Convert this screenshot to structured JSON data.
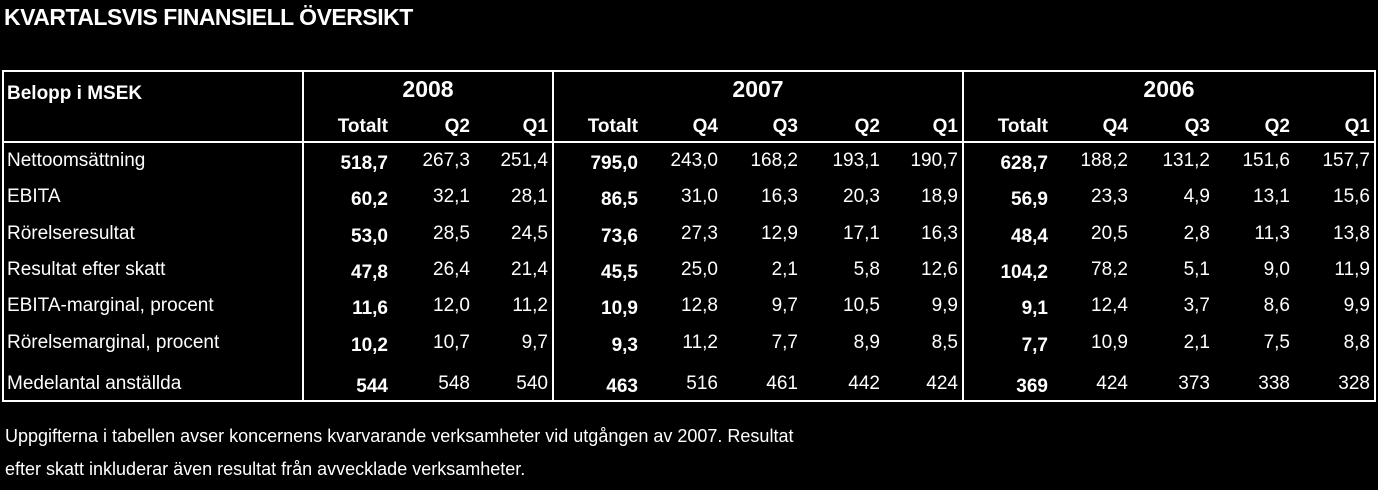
{
  "header": {
    "title": "KVARTALSVIS FINANSIELL ÖVERSIKT"
  },
  "table": {
    "corner": "Belopp i MSEK",
    "groups": [
      {
        "label": "2008",
        "columns": [
          "Totalt",
          "Q2",
          "Q1"
        ]
      },
      {
        "label": "2007",
        "columns": [
          "Totalt",
          "Q4",
          "Q3",
          "Q2",
          "Q1"
        ]
      },
      {
        "label": "2006",
        "columns": [
          "Totalt",
          "Q4",
          "Q3",
          "Q2",
          "Q1"
        ]
      }
    ],
    "rows": [
      {
        "label": "Nettoomsättning",
        "values": [
          "518,7",
          "267,3",
          "251,4",
          "795,0",
          "243,0",
          "168,2",
          "193,1",
          "190,7",
          "628,7",
          "188,2",
          "131,2",
          "151,6",
          "157,7"
        ]
      },
      {
        "label": "EBITA",
        "values": [
          "60,2",
          "32,1",
          "28,1",
          "86,5",
          "31,0",
          "16,3",
          "20,3",
          "18,9",
          "56,9",
          "23,3",
          "4,9",
          "13,1",
          "15,6"
        ]
      },
      {
        "label": "Rörelseresultat",
        "values": [
          "53,0",
          "28,5",
          "24,5",
          "73,6",
          "27,3",
          "12,9",
          "17,1",
          "16,3",
          "48,4",
          "20,5",
          "2,8",
          "11,3",
          "13,8"
        ]
      },
      {
        "label": "Resultat efter skatt",
        "values": [
          "47,8",
          "26,4",
          "21,4",
          "45,5",
          "25,0",
          "2,1",
          "5,8",
          "12,6",
          "104,2",
          "78,2",
          "5,1",
          "9,0",
          "11,9"
        ]
      },
      {
        "label": "EBITA-marginal, procent",
        "values": [
          "11,6",
          "12,0",
          "11,2",
          "10,9",
          "12,8",
          "9,7",
          "10,5",
          "9,9",
          "9,1",
          "12,4",
          "3,7",
          "8,6",
          "9,9"
        ]
      },
      {
        "label": "Rörelsemarginal, procent",
        "values": [
          "10,2",
          "10,7",
          "9,7",
          "9,3",
          "11,2",
          "7,7",
          "8,9",
          "8,5",
          "7,7",
          "10,9",
          "2,1",
          "7,5",
          "8,8"
        ]
      },
      {
        "label": "Medelantal anställda",
        "values": [
          "544",
          "548",
          "540",
          "463",
          "516",
          "461",
          "442",
          "424",
          "369",
          "424",
          "373",
          "338",
          "328"
        ]
      }
    ]
  },
  "footnote": {
    "lines": [
      "Uppgifterna i tabellen avser koncernens kvarvarande verksamheter vid utgången av 2007. Resultat",
      "efter skatt inkluderar även resultat från avvecklade verksamheter."
    ]
  }
}
